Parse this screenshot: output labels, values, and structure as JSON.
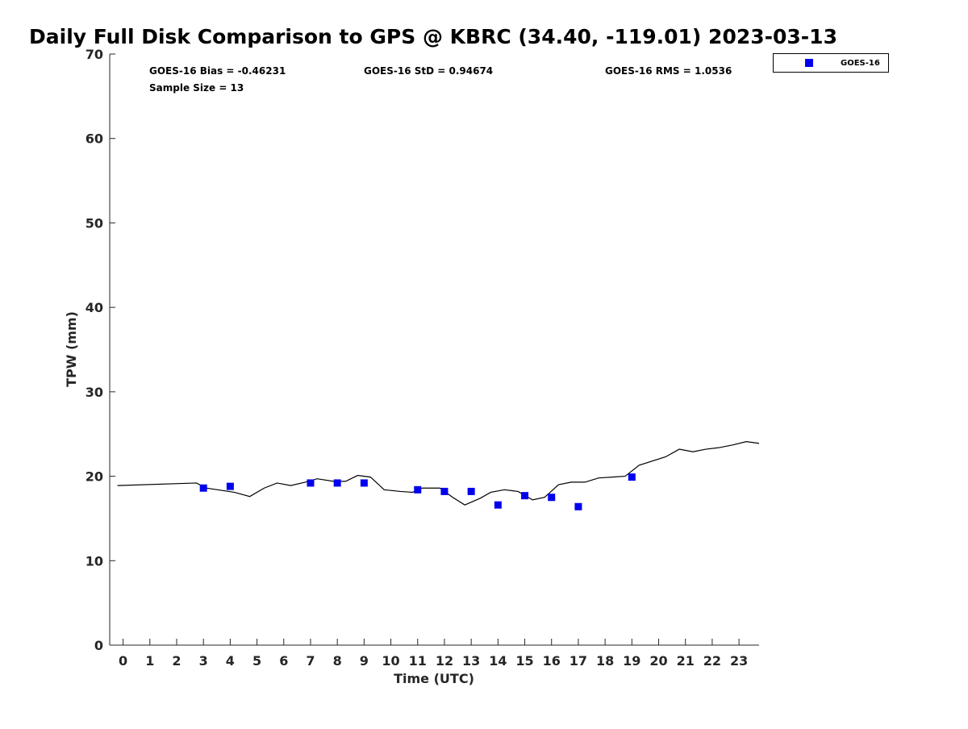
{
  "chart_data": {
    "type": "line",
    "title": "Daily Full Disk Comparison to GPS @ KBRC (34.40, -119.01) 2023-03-13",
    "xlabel": "Time (UTC)",
    "ylabel": "TPW (mm)",
    "xlim": [
      -0.5,
      23.75
    ],
    "ylim": [
      0,
      70
    ],
    "xticks": [
      0,
      1,
      2,
      3,
      4,
      5,
      6,
      7,
      8,
      9,
      10,
      11,
      12,
      13,
      14,
      15,
      16,
      17,
      18,
      19,
      20,
      21,
      22,
      23
    ],
    "yticks": [
      0,
      10,
      20,
      30,
      40,
      50,
      60,
      70
    ],
    "grid": false,
    "legend": {
      "placement": "top-right",
      "entries": [
        "GOES-16"
      ]
    },
    "stats": {
      "bias": "GOES-16 Bias = -0.46231",
      "std": "GOES-16 StD = 0.94674",
      "rms": "GOES-16 RMS = 1.0536",
      "sample": "Sample Size = 13"
    },
    "series": [
      {
        "name": "GPS",
        "kind": "line",
        "color": "#000000",
        "x": [
          -0.21,
          2.74,
          3.1,
          4.15,
          4.73,
          5.27,
          5.75,
          6.26,
          6.8,
          7.25,
          7.86,
          8.31,
          8.76,
          9.24,
          9.75,
          10.36,
          10.81,
          11.17,
          11.83,
          12.31,
          12.76,
          13.34,
          13.73,
          14.24,
          14.75,
          15.29,
          15.74,
          16.26,
          16.74,
          17.25,
          17.76,
          18.75,
          19.27,
          20.26,
          20.77,
          21.28,
          21.76,
          22.28,
          22.76,
          23.27,
          23.75
        ],
        "y": [
          18.9,
          19.2,
          18.6,
          18.1,
          17.6,
          18.6,
          19.2,
          18.9,
          19.3,
          19.7,
          19.4,
          19.4,
          20.1,
          19.9,
          18.4,
          18.2,
          18.1,
          18.6,
          18.6,
          17.5,
          16.6,
          17.4,
          18.1,
          18.4,
          18.2,
          17.2,
          17.5,
          19.0,
          19.3,
          19.3,
          19.8,
          20.0,
          21.3,
          22.3,
          23.2,
          22.9,
          23.2,
          23.4,
          23.7,
          24.1,
          23.9
        ]
      },
      {
        "name": "GOES-16",
        "kind": "scatter",
        "marker": "square",
        "color": "#0000ee",
        "x": [
          3,
          4,
          7,
          8,
          9,
          11,
          12,
          13,
          14,
          15,
          16,
          17,
          19
        ],
        "y": [
          18.6,
          18.8,
          19.2,
          19.2,
          19.2,
          18.4,
          18.2,
          18.2,
          16.6,
          17.7,
          17.5,
          16.4,
          19.9
        ]
      }
    ]
  }
}
